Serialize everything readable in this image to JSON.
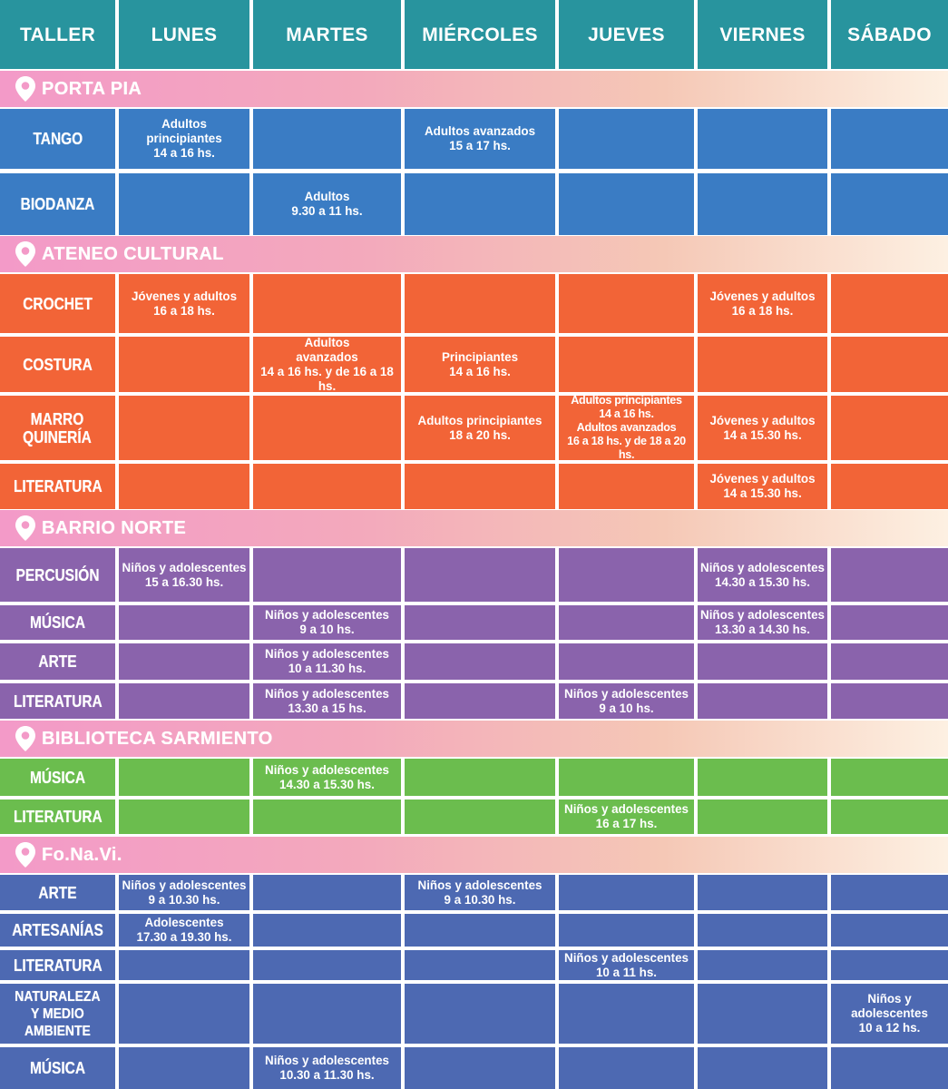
{
  "header": {
    "taller": "TALLER",
    "days": [
      "LUNES",
      "MARTES",
      "MIÉRCOLES",
      "JUEVES",
      "VIERNES",
      "SÁBADO"
    ]
  },
  "colors": {
    "header": "#28949e",
    "porta_pia": "#3a7cc4",
    "ateneo_cultural": "#f26437",
    "barrio_norte": "#8a63ac",
    "biblioteca_sarmiento": "#6bbd4e",
    "fonavi": "#4d69b2",
    "location_band_start": "#f39ac8",
    "location_band_end": "#fdf0e2"
  },
  "pin_icon": "map-pin-icon",
  "sections": [
    {
      "location": "PORTA PIA",
      "color": "#3a7cc4",
      "rows": [
        {
          "name": "TANGO",
          "slots": [
            "Adultos\nprincipiantes\n14 a 16 hs.",
            "",
            "Adultos avanzados\n15 a 17 hs.",
            "",
            "",
            ""
          ]
        },
        {
          "name": "BIODANZA",
          "slots": [
            "",
            "Adultos\n9.30 a 11 hs.",
            "",
            "",
            "",
            ""
          ]
        }
      ]
    },
    {
      "location": "ATENEO CULTURAL",
      "color": "#f26437",
      "rows": [
        {
          "name": "CROCHET",
          "slots": [
            "Jóvenes y adultos\n16 a 18 hs.",
            "",
            "",
            "",
            "Jóvenes y adultos\n16 a 18 hs.",
            ""
          ]
        },
        {
          "name": "COSTURA",
          "slots": [
            "",
            "Adultos\navanzados\n14 a 16 hs. y de 16 a 18 hs.",
            "Principiantes\n14 a 16 hs.",
            "",
            "",
            ""
          ]
        },
        {
          "name": "MARRO\nQUINERÍA",
          "slots": [
            "",
            "",
            "Adultos principiantes\n18 a 20 hs.",
            "Adultos principiantes\n14 a 16 hs.\nAdultos avanzados\n16 a 18 hs. y de 18 a 20 hs.",
            "Jóvenes y adultos\n14 a 15.30 hs.",
            ""
          ]
        },
        {
          "name": "LITERATURA",
          "slots": [
            "",
            "",
            "",
            "",
            "Jóvenes y adultos\n14 a 15.30 hs.",
            ""
          ]
        }
      ]
    },
    {
      "location": "BARRIO NORTE",
      "color": "#8a63ac",
      "rows": [
        {
          "name": "PERCUSIÓN",
          "slots": [
            "Niños y adolescentes\n15 a 16.30 hs.",
            "",
            "",
            "",
            "Niños y adolescentes\n14.30 a 15.30 hs.",
            ""
          ]
        },
        {
          "name": "MÚSICA",
          "slots": [
            "",
            "Niños y adolescentes\n9 a 10 hs.",
            "",
            "",
            "Niños y adolescentes\n13.30 a 14.30 hs.",
            ""
          ]
        },
        {
          "name": "ARTE",
          "slots": [
            "",
            "Niños y adolescentes\n10 a 11.30 hs.",
            "",
            "",
            "",
            ""
          ]
        },
        {
          "name": "LITERATURA",
          "slots": [
            "",
            "Niños y adolescentes\n13.30 a 15 hs.",
            "",
            "Niños y adolescentes\n9 a 10 hs.",
            "",
            ""
          ]
        }
      ]
    },
    {
      "location": "BIBLIOTECA SARMIENTO",
      "color": "#6bbd4e",
      "rows": [
        {
          "name": "MÚSICA",
          "slots": [
            "",
            "Niños y adolescentes\n14.30 a 15.30 hs.",
            "",
            "",
            "",
            ""
          ]
        },
        {
          "name": "LITERATURA",
          "slots": [
            "",
            "",
            "",
            "Niños y adolescentes\n16 a 17 hs.",
            "",
            ""
          ]
        }
      ]
    },
    {
      "location": "Fo.Na.Vi.",
      "color": "#4d69b2",
      "rows": [
        {
          "name": "ARTE",
          "slots": [
            "Niños y adolescentes\n9 a 10.30 hs.",
            "",
            "Niños y adolescentes\n9 a 10.30 hs.",
            "",
            "",
            ""
          ]
        },
        {
          "name": "ARTESANÍAS",
          "slots": [
            "Adolescentes\n17.30 a 19.30 hs.",
            "",
            "",
            "",
            "",
            ""
          ]
        },
        {
          "name": "LITERATURA",
          "slots": [
            "",
            "",
            "",
            "Niños y adolescentes\n10 a 11 hs.",
            "",
            ""
          ]
        },
        {
          "name": "NATURALEZA\nY MEDIO\nAMBIENTE",
          "slots": [
            "",
            "",
            "",
            "",
            "",
            "Niños y adolescentes\n10 a 12 hs."
          ]
        },
        {
          "name": "MÚSICA",
          "slots": [
            "",
            "Niños y adolescentes\n10.30 a 11.30 hs.",
            "",
            "",
            "",
            ""
          ]
        }
      ]
    }
  ]
}
